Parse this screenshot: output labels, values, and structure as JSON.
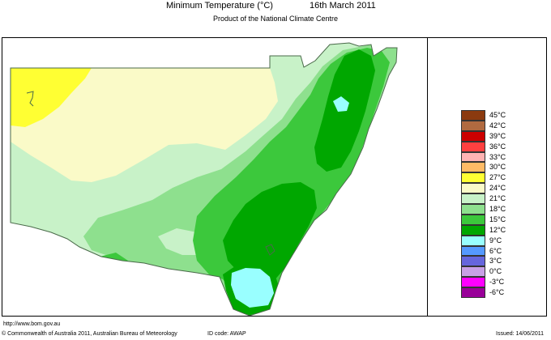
{
  "header": {
    "title": "Minimum Temperature (°C)",
    "date": "16th March 2011",
    "subtitle": "Product of the National Climate Centre"
  },
  "map": {
    "region": "New South Wales",
    "colors": {
      "c27": "#ffff33",
      "c24": "#fafac8",
      "c21": "#c8f2c8",
      "c18": "#8ee08e",
      "c15": "#3cc83c",
      "c12": "#00a700",
      "c9": "#99ffff",
      "border": "#4a6a4a"
    }
  },
  "legend": [
    {
      "label": "45°C",
      "color": "#8b3a0f"
    },
    {
      "label": "42°C",
      "color": "#b06a40"
    },
    {
      "label": "39°C",
      "color": "#cc0000"
    },
    {
      "label": "36°C",
      "color": "#ff4040"
    },
    {
      "label": "33°C",
      "color": "#ffb3b3"
    },
    {
      "label": "30°C",
      "color": "#ffbb66"
    },
    {
      "label": "27°C",
      "color": "#ffff33"
    },
    {
      "label": "24°C",
      "color": "#fafac8"
    },
    {
      "label": "21°C",
      "color": "#c8f2c8"
    },
    {
      "label": "18°C",
      "color": "#8ee08e"
    },
    {
      "label": "15°C",
      "color": "#3cc83c"
    },
    {
      "label": "12°C",
      "color": "#00a700"
    },
    {
      "label": "9°C",
      "color": "#99ffff"
    },
    {
      "label": "6°C",
      "color": "#5599ff"
    },
    {
      "label": "3°C",
      "color": "#6666dd"
    },
    {
      "label": "0°C",
      "color": "#c8a0e6"
    },
    {
      "label": "-3°C",
      "color": "#ff00ff"
    },
    {
      "label": "-6°C",
      "color": "#990099"
    }
  ],
  "footer": {
    "url": "http://www.bom.gov.au",
    "copyright": "© Commonwealth of Australia 2011, Australian Bureau of Meteorology",
    "id_code": "ID code: AWAP",
    "issued": "Issued: 14/06/2011"
  }
}
